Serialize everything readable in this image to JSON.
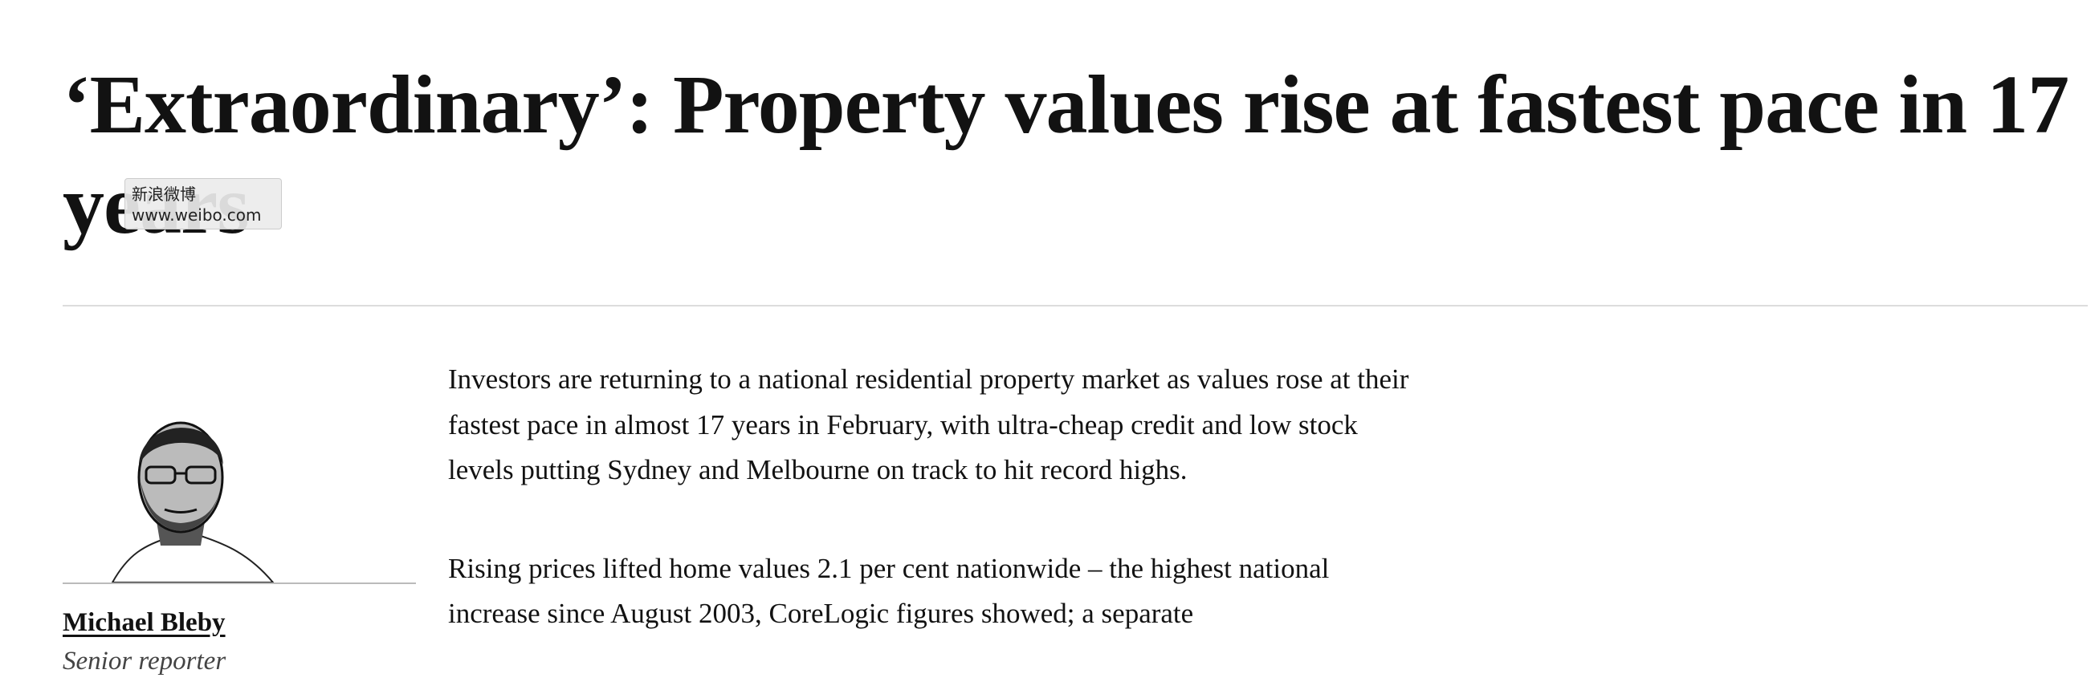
{
  "headline": "‘Extraordinary’: Property values rise at fastest pace in 17 years",
  "author": {
    "name": "Michael Bleby",
    "role": "Senior reporter"
  },
  "paragraphs": [
    "Investors are returning to a national residential property market as values rose at their fastest pace in almost 17 years in February, with ultra-cheap credit and low stock levels putting Sydney and Melbourne on track to hit record highs.",
    "Rising prices lifted home values 2.1 per cent nationwide – the highest national increase since August 2003, CoreLogic figures showed; a separate"
  ],
  "watermark": {
    "brand": "新浪微博",
    "url": "www.weibo.com"
  }
}
